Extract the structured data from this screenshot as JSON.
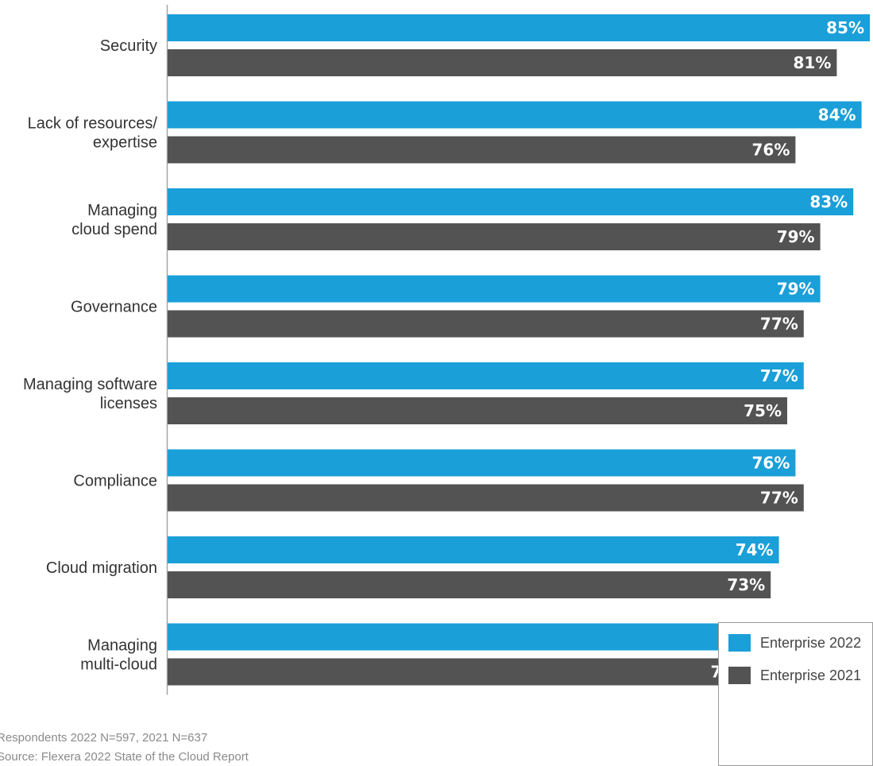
{
  "chart_data": {
    "type": "bar",
    "orientation": "horizontal",
    "categories": [
      [
        "Security"
      ],
      [
        "Lack of resources/",
        "expertise"
      ],
      [
        "Managing",
        "cloud spend"
      ],
      [
        "Governance"
      ],
      [
        "Managing software",
        "licenses"
      ],
      [
        "Compliance"
      ],
      [
        "Cloud migration"
      ],
      [
        "Managing",
        "multi-cloud"
      ]
    ],
    "series": [
      {
        "name": "Enterprise 2022",
        "color": "#1a9fd9",
        "values": [
          85,
          84,
          83,
          79,
          77,
          76,
          74,
          72
        ],
        "labels": [
          "85%",
          "84%",
          "83%",
          "79%",
          "77%",
          "76%",
          "74%",
          "72%"
        ]
      },
      {
        "name": "Enterprise 2021",
        "color": "#535353",
        "values": [
          81,
          76,
          79,
          77,
          75,
          77,
          73,
          71
        ],
        "labels": [
          "81%",
          "76%",
          "79%",
          "77%",
          "75%",
          "77%",
          "73%",
          "71%"
        ]
      }
    ],
    "value_unit": "%",
    "xlim": [
      0,
      85
    ],
    "grid": false,
    "legend_position": "bottom-right"
  },
  "footnotes": {
    "respondents": "Respondents 2022 N=597, 2021 N=637",
    "source": "Source: Flexera 2022 State of the Cloud Report"
  }
}
